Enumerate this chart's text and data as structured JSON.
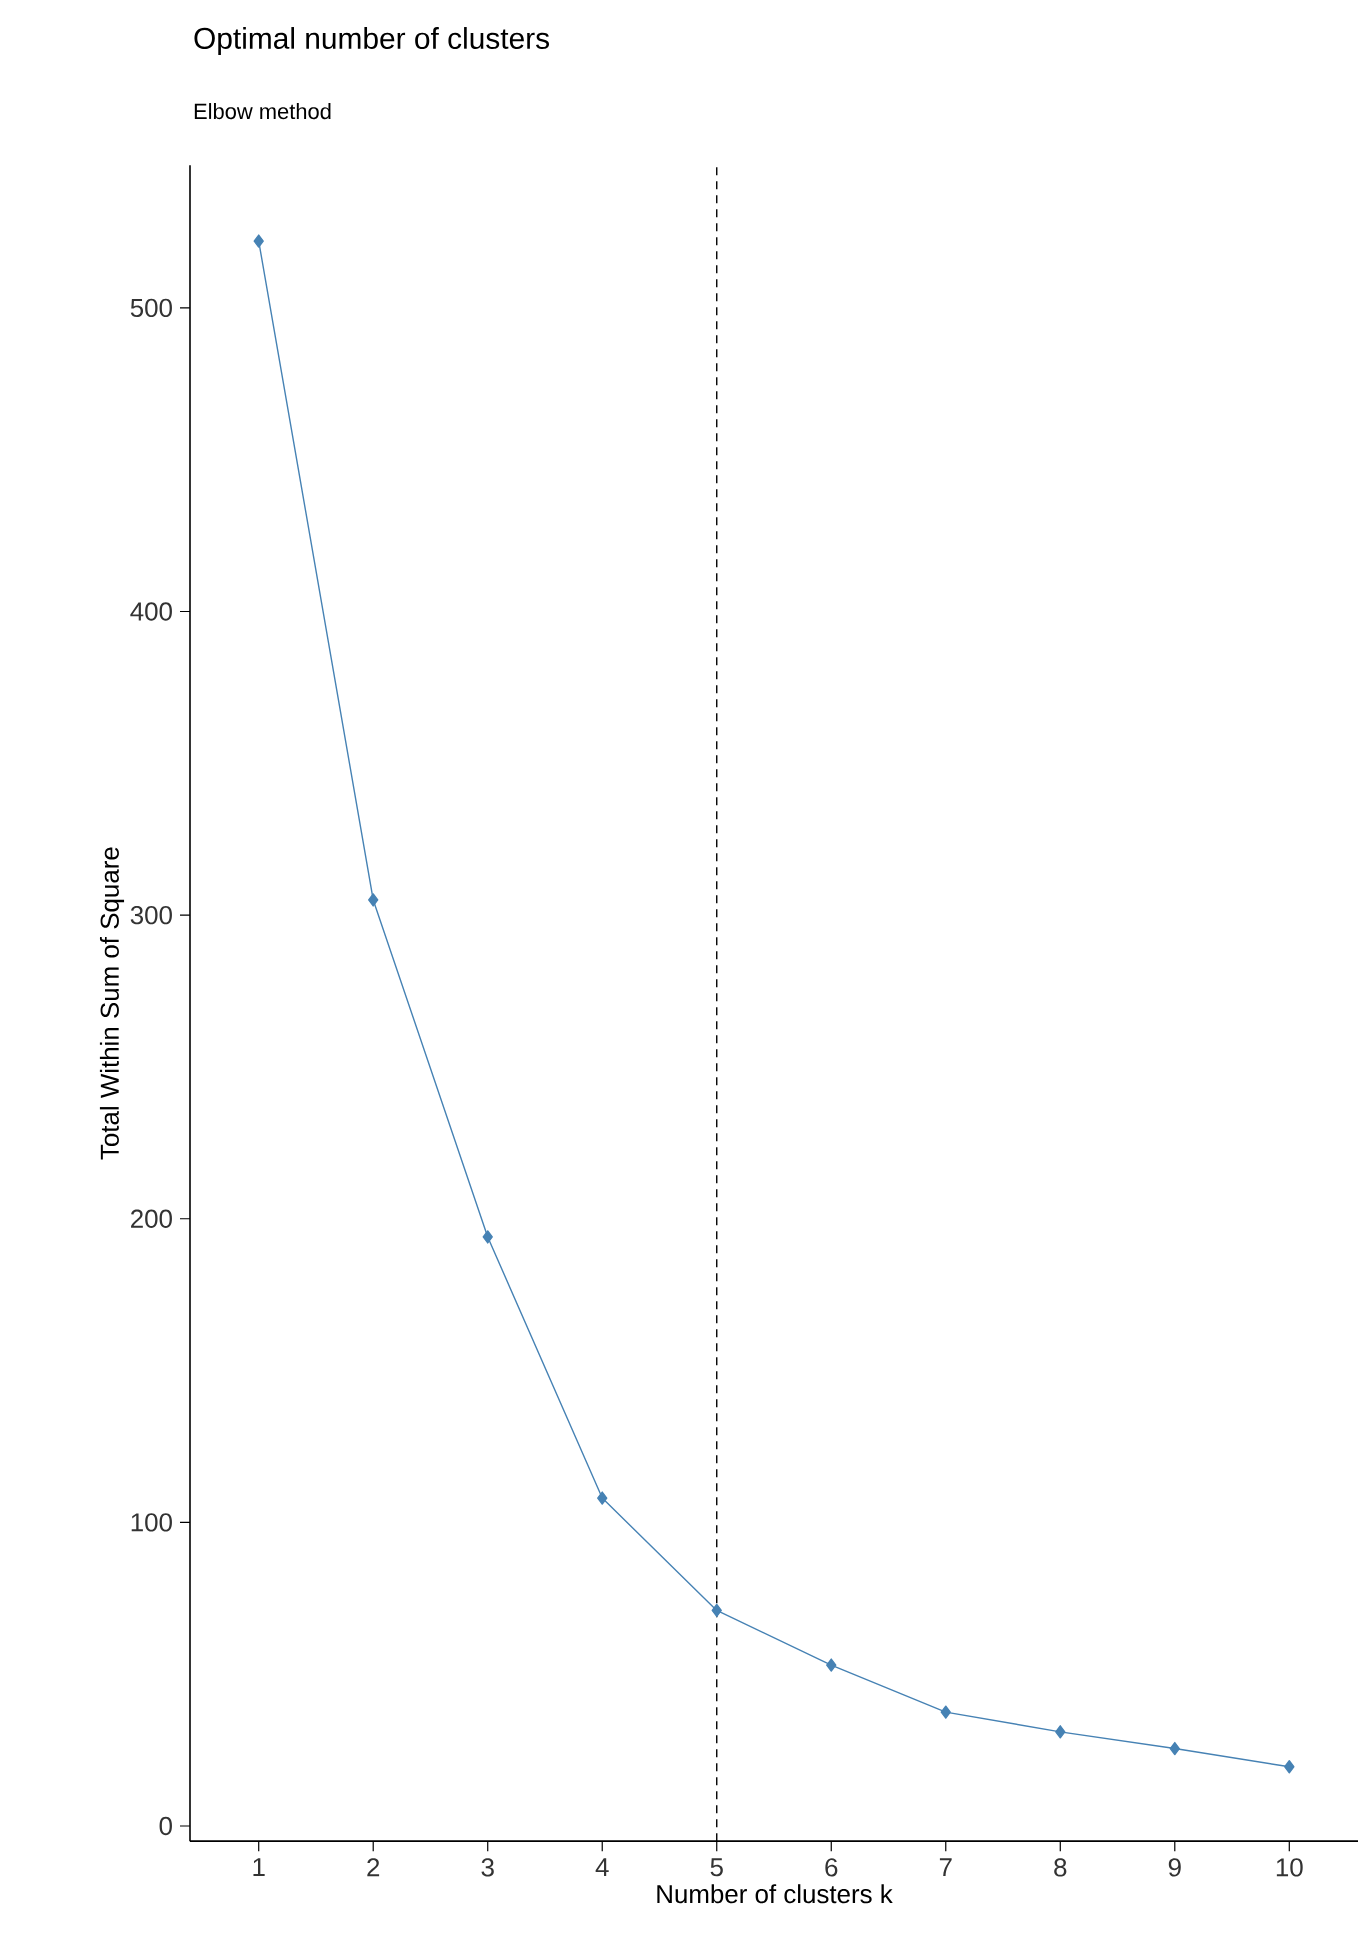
{
  "chart_data": {
    "type": "line",
    "title": "Optimal number of clusters",
    "subtitle": "Elbow method",
    "xlabel": "Number of clusters k",
    "ylabel": "Total Within Sum of Square",
    "x": [
      1,
      2,
      3,
      4,
      5,
      6,
      7,
      8,
      9,
      10
    ],
    "series": [
      {
        "color": "#4682b4",
        "values": [
          522,
          305,
          194,
          108,
          71,
          53,
          37.5,
          31,
          25.5,
          19.5
        ]
      }
    ],
    "xlim": [
      0.4,
      10.6
    ],
    "ylim": [
      -5,
      547
    ],
    "xticks": [
      1,
      2,
      3,
      4,
      5,
      6,
      7,
      8,
      9,
      10
    ],
    "yticks": [
      0,
      100,
      200,
      300,
      400,
      500
    ],
    "ref_lines": [
      {
        "axis": "x",
        "value": 5,
        "line_style": "dashed"
      }
    ],
    "grid": false,
    "marker": "diamond",
    "line_style": "solid"
  }
}
